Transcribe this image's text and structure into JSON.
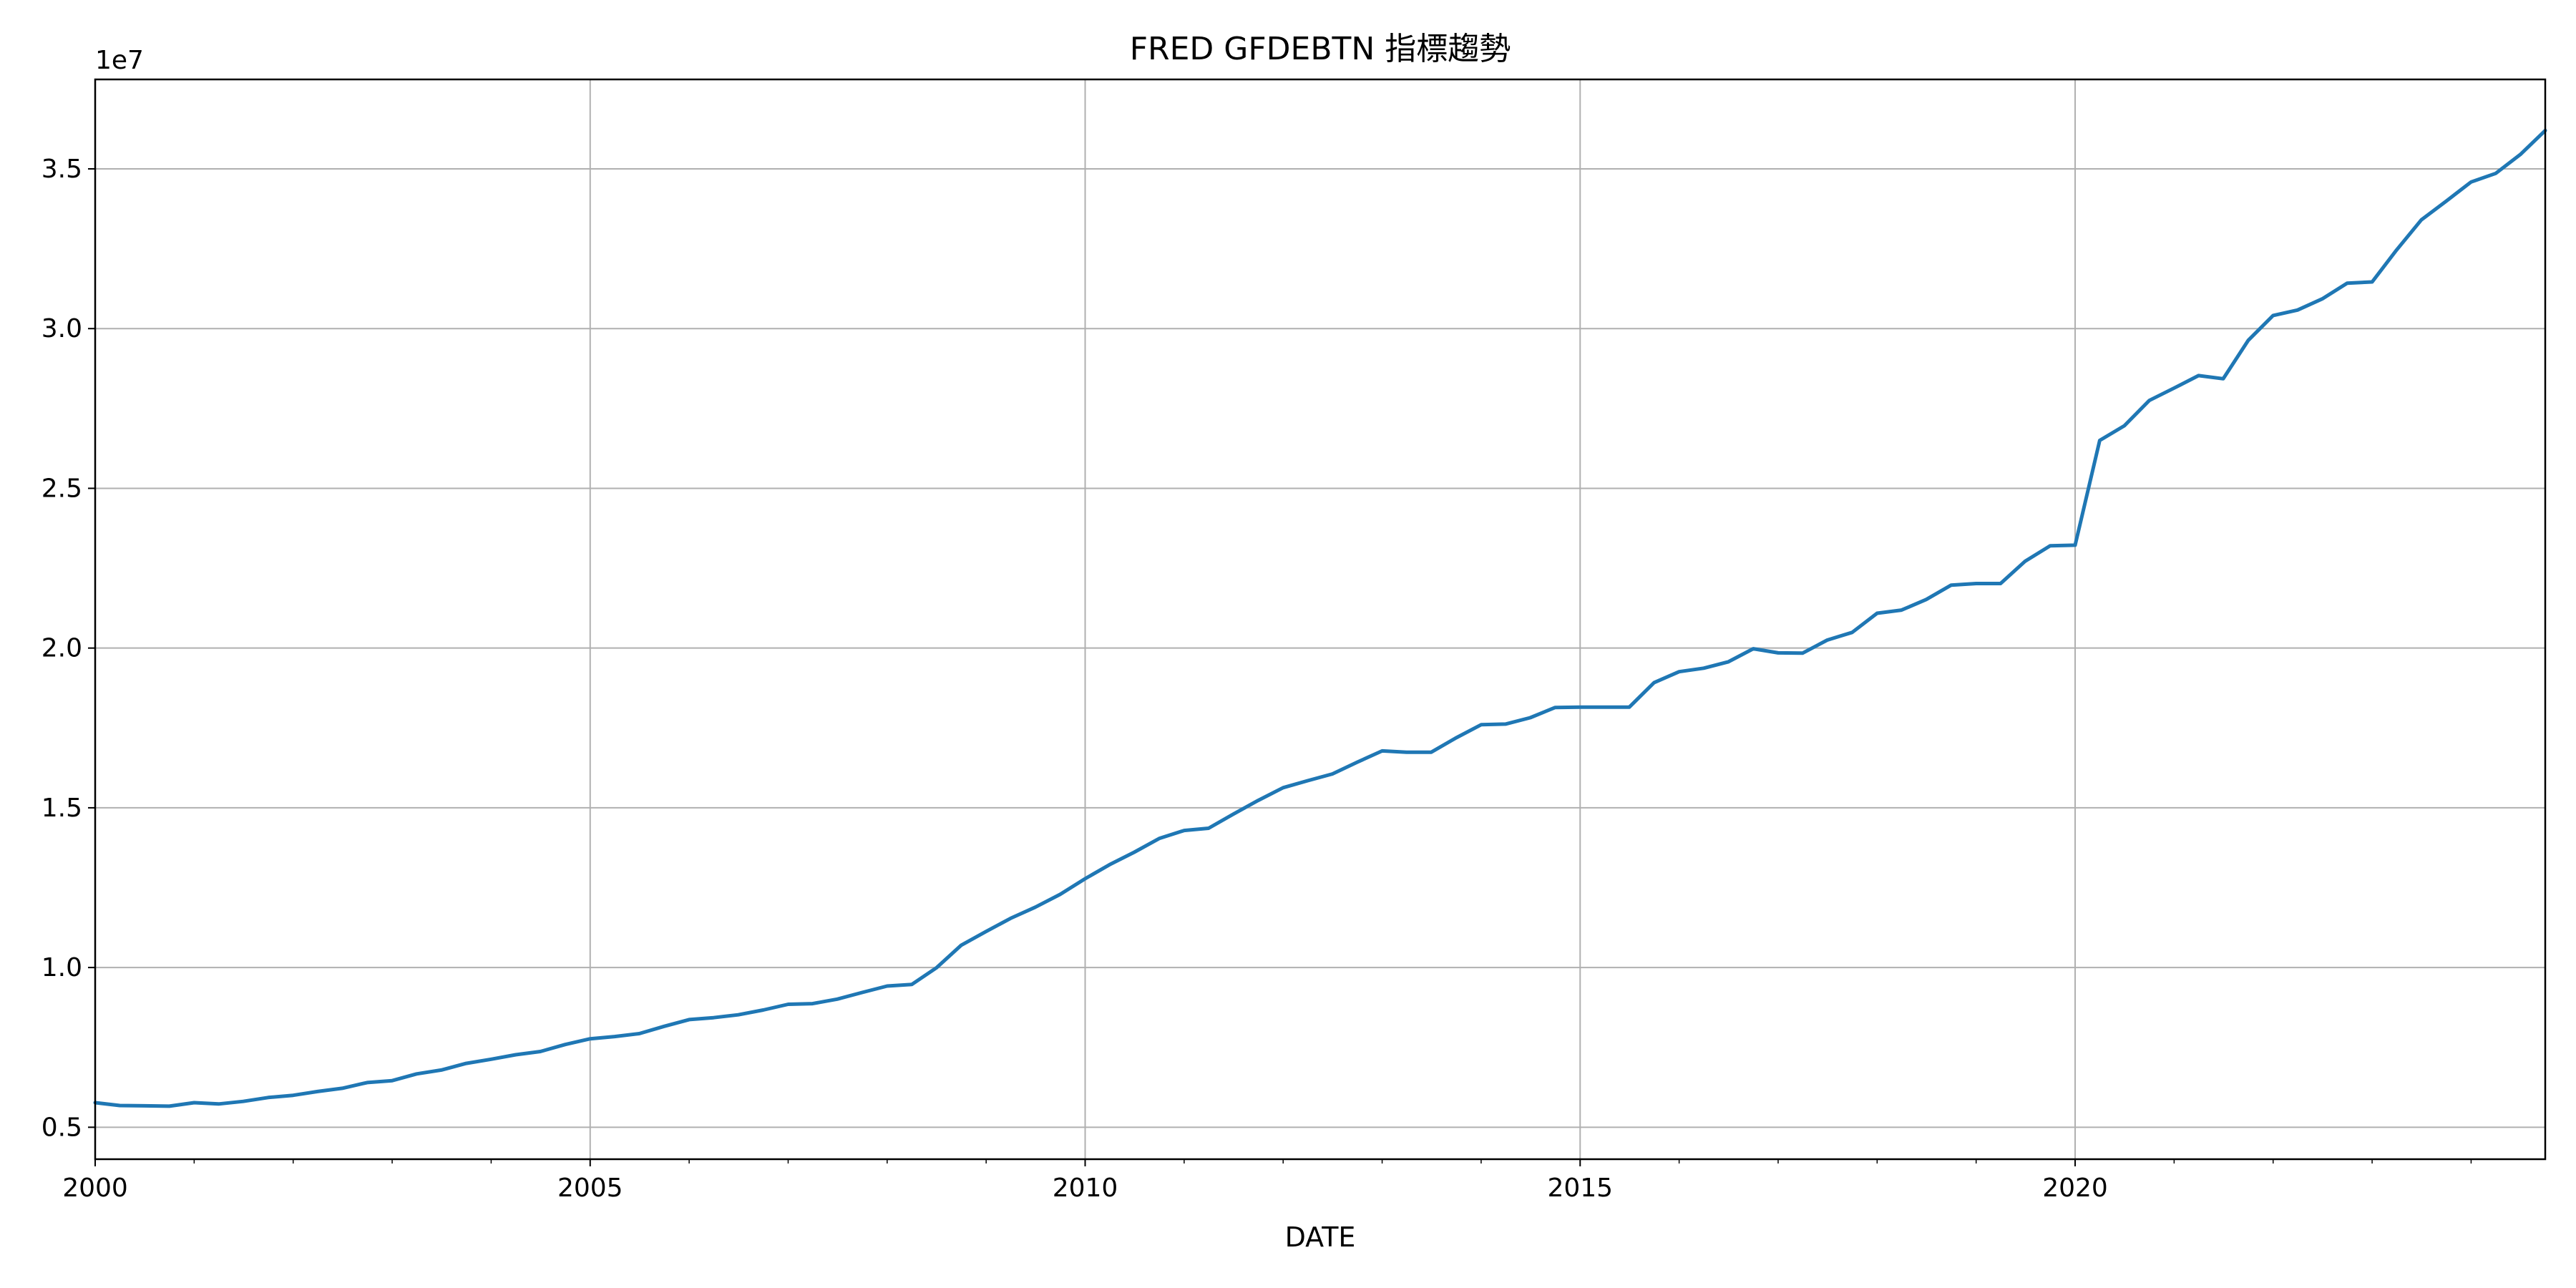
{
  "chart_data": {
    "type": "line",
    "title": "FRED GFDEBTN 指標趨勢",
    "xlabel": "DATE",
    "ylabel": "",
    "y_offset_label": "1e7",
    "x_ticks": [
      "2000",
      "2005",
      "2010",
      "2015",
      "2020"
    ],
    "y_ticks": [
      "0.5",
      "1.0",
      "1.5",
      "2.0",
      "2.5",
      "3.0",
      "3.5"
    ],
    "xlim": [
      "2000-01-01",
      "2024-10-01"
    ],
    "ylim": [
      0.4,
      3.78
    ],
    "y_unit_multiplier": 10000000,
    "grid": true,
    "line_color": "#1f77b4",
    "series": [
      {
        "x": [
          "2000-01-01",
          "2000-04-01",
          "2000-07-01",
          "2000-10-01",
          "2001-01-01",
          "2001-04-01",
          "2001-07-01",
          "2001-10-01",
          "2002-01-01",
          "2002-04-01",
          "2002-07-01",
          "2002-10-01",
          "2003-01-01",
          "2003-04-01",
          "2003-07-01",
          "2003-10-01",
          "2004-01-01",
          "2004-04-01",
          "2004-07-01",
          "2004-10-01",
          "2005-01-01",
          "2005-04-01",
          "2005-07-01",
          "2005-10-01",
          "2006-01-01",
          "2006-04-01",
          "2006-07-01",
          "2006-10-01",
          "2007-01-01",
          "2007-04-01",
          "2007-07-01",
          "2007-10-01",
          "2008-01-01",
          "2008-04-01",
          "2008-07-01",
          "2008-10-01",
          "2009-01-01",
          "2009-04-01",
          "2009-07-01",
          "2009-10-01",
          "2010-01-01",
          "2010-04-01",
          "2010-07-01",
          "2010-10-01",
          "2011-01-01",
          "2011-04-01",
          "2011-07-01",
          "2011-10-01",
          "2012-01-01",
          "2012-04-01",
          "2012-07-01",
          "2012-10-01",
          "2013-01-01",
          "2013-04-01",
          "2013-07-01",
          "2013-10-01",
          "2014-01-01",
          "2014-04-01",
          "2014-07-01",
          "2014-10-01",
          "2015-01-01",
          "2015-04-01",
          "2015-07-01",
          "2015-10-01",
          "2016-01-01",
          "2016-04-01",
          "2016-07-01",
          "2016-10-01",
          "2017-01-01",
          "2017-04-01",
          "2017-07-01",
          "2017-10-01",
          "2018-01-01",
          "2018-04-01",
          "2018-07-01",
          "2018-10-01",
          "2019-01-01",
          "2019-04-01",
          "2019-07-01",
          "2019-10-01",
          "2020-01-01",
          "2020-04-01",
          "2020-07-01",
          "2020-10-01",
          "2021-01-01",
          "2021-04-01",
          "2021-07-01",
          "2021-10-01",
          "2022-01-01",
          "2022-04-01",
          "2022-07-01",
          "2022-10-01",
          "2023-01-01",
          "2023-04-01",
          "2023-07-01",
          "2023-10-01",
          "2024-01-01",
          "2024-04-01",
          "2024-07-01",
          "2024-10-01"
        ],
        "y": [
          0.577,
          0.568,
          0.567,
          0.566,
          0.577,
          0.573,
          0.581,
          0.593,
          0.6,
          0.612,
          0.622,
          0.64,
          0.646,
          0.667,
          0.679,
          0.7,
          0.713,
          0.727,
          0.737,
          0.759,
          0.777,
          0.784,
          0.793,
          0.816,
          0.837,
          0.843,
          0.852,
          0.867,
          0.885,
          0.887,
          0.901,
          0.922,
          0.942,
          0.947,
          0.999,
          1.07,
          1.113,
          1.154,
          1.189,
          1.229,
          1.278,
          1.322,
          1.361,
          1.404,
          1.429,
          1.436,
          1.48,
          1.523,
          1.563,
          1.585,
          1.606,
          1.643,
          1.678,
          1.674,
          1.674,
          1.719,
          1.76,
          1.762,
          1.782,
          1.814,
          1.815,
          1.815,
          1.815,
          1.892,
          1.926,
          1.937,
          1.957,
          1.998,
          1.985,
          1.984,
          2.025,
          2.049,
          2.109,
          2.119,
          2.152,
          2.197,
          2.202,
          2.202,
          2.272,
          2.32,
          2.322,
          2.65,
          2.696,
          2.775,
          2.814,
          2.853,
          2.843,
          2.963,
          3.041,
          3.058,
          3.093,
          3.142,
          3.146,
          3.246,
          3.34,
          3.399,
          3.459,
          3.486,
          3.545,
          3.62
        ]
      }
    ]
  }
}
